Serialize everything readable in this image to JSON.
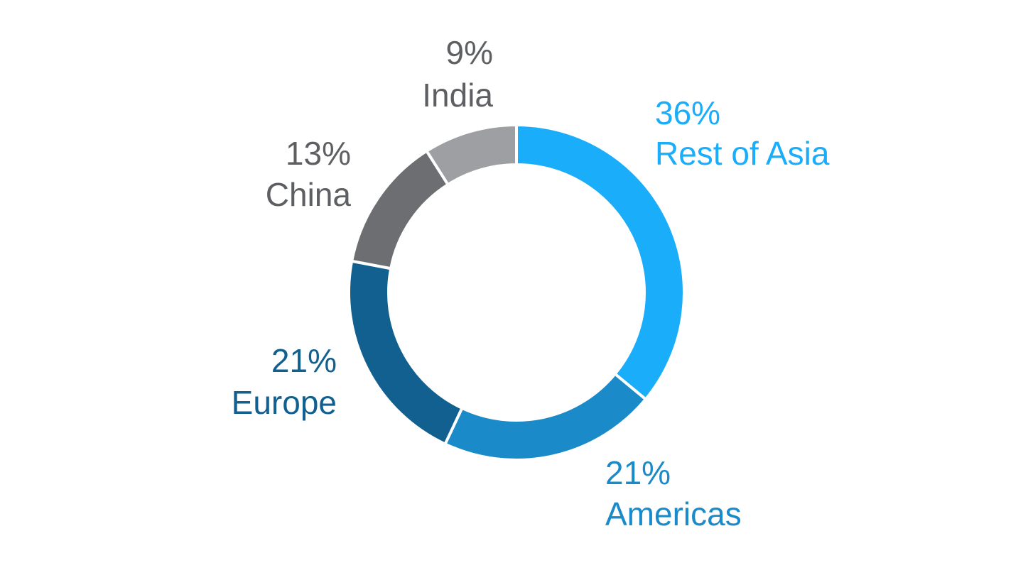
{
  "chart_data": {
    "type": "pie",
    "variant": "donut",
    "segments": [
      {
        "name": "Rest of Asia",
        "value": 36,
        "label": "36%",
        "color": "#1aadfa"
      },
      {
        "name": "Americas",
        "value": 21,
        "label": "21%",
        "color": "#1a8ac9"
      },
      {
        "name": "Europe",
        "value": 21,
        "label": "21%",
        "color": "#12608f"
      },
      {
        "name": "China",
        "value": 13,
        "label": "13%",
        "color": "#6c6e71"
      },
      {
        "name": "India",
        "value": 9,
        "label": "9%",
        "color": "#9d9fa2"
      }
    ],
    "label_colors": {
      "Rest of Asia": "#1aadfa",
      "Americas": "#1a8ac9",
      "Europe": "#12608f",
      "China": "#5d5f62",
      "India": "#5d5f62"
    },
    "legend": "none",
    "start": "top",
    "direction": "clockwise"
  }
}
